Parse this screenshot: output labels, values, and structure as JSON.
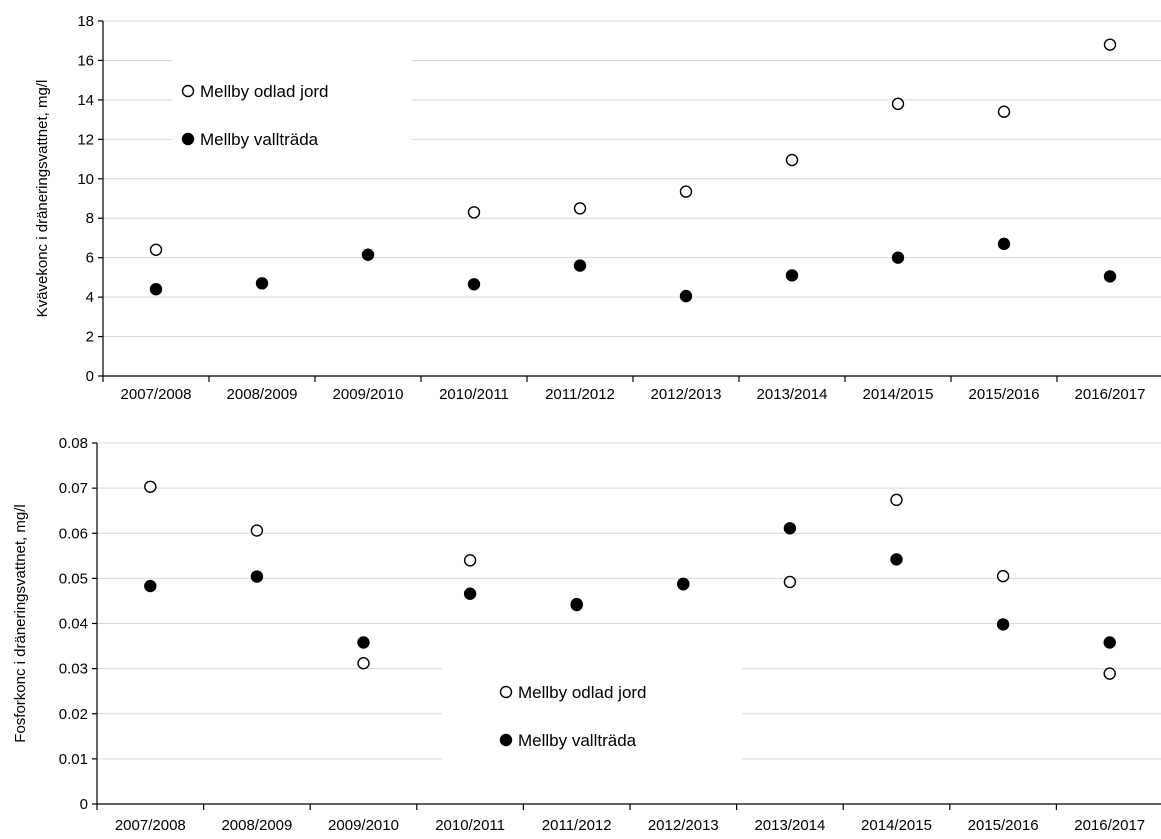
{
  "chart_data": [
    {
      "type": "scatter",
      "title": "",
      "xlabel": "",
      "ylabel": "Kvävekonc i dräneringsvattnet, mg/l",
      "categories": [
        "2007/2008",
        "2008/2009",
        "2009/2010",
        "2010/2011",
        "2011/2012",
        "2012/2013",
        "2013/2014",
        "2014/2015",
        "2015/2016",
        "2016/2017"
      ],
      "ylim": [
        0,
        18
      ],
      "yticks": [
        "0",
        "2",
        "4",
        "6",
        "8",
        "10",
        "12",
        "14",
        "16",
        "18"
      ],
      "grid": true,
      "legend_position": "top-left",
      "series": [
        {
          "name": "Mellby odlad jord",
          "marker": "open-circle",
          "color": "#000000",
          "values": [
            6.4,
            null,
            null,
            8.3,
            8.5,
            9.35,
            10.95,
            13.8,
            13.4,
            16.8
          ]
        },
        {
          "name": "Mellby vallträda",
          "marker": "filled-circle",
          "color": "#000000",
          "values": [
            4.4,
            4.7,
            6.15,
            4.65,
            5.6,
            4.05,
            5.1,
            6.0,
            6.7,
            5.05
          ]
        }
      ]
    },
    {
      "type": "scatter",
      "title": "",
      "xlabel": "",
      "ylabel": "Fosforkonc i dräneringsvattnet, mg/l",
      "categories": [
        "2007/2008",
        "2008/2009",
        "2009/2010",
        "2010/2011",
        "2011/2012",
        "2012/2013",
        "2013/2014",
        "2014/2015",
        "2015/2016",
        "2016/2017"
      ],
      "ylim": [
        0,
        0.08
      ],
      "yticks": [
        "0",
        "0.01",
        "0.02",
        "0.03",
        "0.04",
        "0.05",
        "0.06",
        "0.07",
        "0.08"
      ],
      "grid": true,
      "legend_position": "bottom-center",
      "series": [
        {
          "name": "Mellby odlad jord",
          "marker": "open-circle",
          "color": "#000000",
          "values": [
            0.0703,
            0.0606,
            0.0312,
            0.054,
            0.0443,
            0.0488,
            0.0492,
            0.0674,
            0.0505,
            0.0289
          ]
        },
        {
          "name": "Mellby vallträda",
          "marker": "filled-circle",
          "color": "#000000",
          "values": [
            0.0483,
            0.0504,
            0.0358,
            0.0466,
            0.0441,
            0.0487,
            0.0611,
            0.0542,
            0.0398,
            0.0358
          ]
        }
      ]
    }
  ]
}
